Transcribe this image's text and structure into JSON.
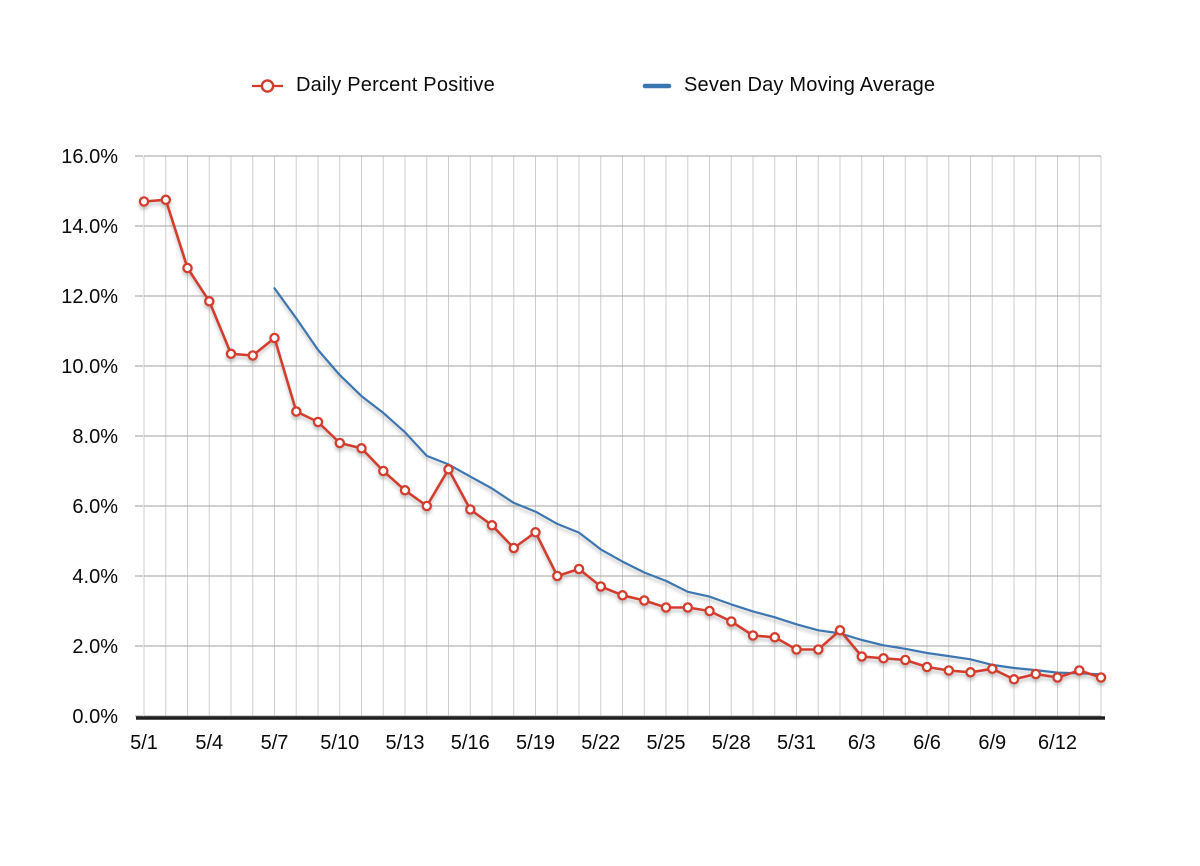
{
  "legend": {
    "daily_label": "Daily Percent Positive",
    "ma_label": "Seven Day Moving Average"
  },
  "colors": {
    "daily_series": "#d23c2d",
    "ma_series": "#3c76b0",
    "v_gridline": "#cdcdcd",
    "h_gridline": "#b3b3b3",
    "axis": "#1f1f1f",
    "text": "#0a0a0a",
    "marker_fill": "#ffffff",
    "shadow": "#9a9a9a"
  },
  "chart_data": {
    "type": "line",
    "title": "",
    "xlabel": "",
    "ylabel": "",
    "grid": "on",
    "legend_position": "top",
    "ylim": [
      0,
      16
    ],
    "y_tick_step": 2,
    "y_ticklabels": [
      "0.0%",
      "2.0%",
      "4.0%",
      "6.0%",
      "8.0%",
      "10.0%",
      "12.0%",
      "14.0%",
      "16.0%"
    ],
    "x_tick_every": 3,
    "x_ticklabels": [
      "5/1",
      "5/4",
      "5/7",
      "5/10",
      "5/13",
      "5/16",
      "5/19",
      "5/22",
      "5/25",
      "5/28",
      "5/31",
      "6/3",
      "6/6",
      "6/9",
      "6/12"
    ],
    "x": [
      "5/1",
      "5/2",
      "5/3",
      "5/4",
      "5/5",
      "5/6",
      "5/7",
      "5/8",
      "5/9",
      "5/10",
      "5/11",
      "5/12",
      "5/13",
      "5/14",
      "5/15",
      "5/16",
      "5/17",
      "5/18",
      "5/19",
      "5/20",
      "5/21",
      "5/22",
      "5/23",
      "5/24",
      "5/25",
      "5/26",
      "5/27",
      "5/28",
      "5/29",
      "5/30",
      "5/31",
      "6/1",
      "6/2",
      "6/3",
      "6/4",
      "6/5",
      "6/6",
      "6/7",
      "6/8",
      "6/9",
      "6/10",
      "6/11",
      "6/12",
      "6/13",
      "6/14"
    ],
    "series": [
      {
        "name": "Daily Percent Positive",
        "color": "#d23c2d",
        "marker": "open-circle",
        "values": [
          14.7,
          14.75,
          12.8,
          11.85,
          10.35,
          10.3,
          10.8,
          8.7,
          8.4,
          7.8,
          7.65,
          7.0,
          6.45,
          6.0,
          7.05,
          5.9,
          5.45,
          4.8,
          5.25,
          4.0,
          4.2,
          3.7,
          3.45,
          3.3,
          3.1,
          3.1,
          3.0,
          2.7,
          2.3,
          2.25,
          1.9,
          1.9,
          2.45,
          1.7,
          1.65,
          1.6,
          1.4,
          1.3,
          1.25,
          1.35,
          1.05,
          1.2,
          1.1,
          1.3,
          1.1
        ]
      },
      {
        "name": "Seven Day Moving Average",
        "color": "#3c76b0",
        "marker": "none",
        "values": [
          null,
          null,
          null,
          null,
          null,
          null,
          12.22,
          11.36,
          10.46,
          9.74,
          9.14,
          8.66,
          8.11,
          7.43,
          7.19,
          6.84,
          6.5,
          6.09,
          5.84,
          5.49,
          5.24,
          4.76,
          4.41,
          4.1,
          3.86,
          3.55,
          3.41,
          3.19,
          2.99,
          2.82,
          2.62,
          2.45,
          2.36,
          2.17,
          2.02,
          1.92,
          1.8,
          1.71,
          1.62,
          1.46,
          1.37,
          1.31,
          1.24,
          1.22,
          1.19
        ]
      }
    ]
  }
}
